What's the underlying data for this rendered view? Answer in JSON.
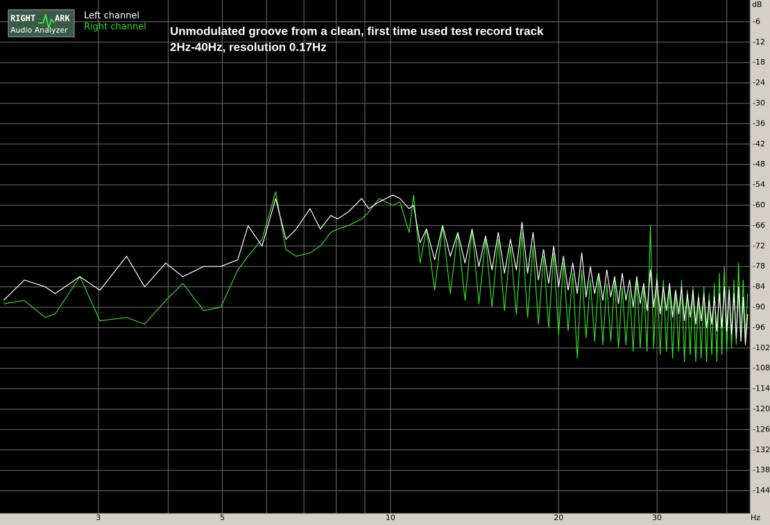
{
  "chart_data": {
    "type": "line",
    "logo": {
      "word1": "RIGHT",
      "word2": "ARK",
      "subtitle": "Audio Analyzer"
    },
    "title": "Unmodulated groove from a clean, first time used test record track",
    "subtitle": "2Hz-40Hz, resolution 0.17Hz",
    "y_label": "dB",
    "x_label": "Hz",
    "log_x": true,
    "grid": true,
    "background": "#000000",
    "grid_color": "#707070",
    "xlim": [
      2,
      44
    ],
    "xticks": [
      3,
      5,
      10,
      20,
      30
    ],
    "xminor": [
      4,
      6,
      7,
      8,
      9,
      40
    ],
    "ylim": [
      -150,
      0
    ],
    "yticks": [
      -6,
      -12,
      -18,
      -24,
      -30,
      -36,
      -42,
      -48,
      -54,
      -60,
      -66,
      -72,
      -78,
      -84,
      -90,
      -96,
      -102,
      -108,
      -114,
      -120,
      -126,
      -132,
      -138,
      -144
    ],
    "x": [
      2.03,
      2.21,
      2.41,
      2.51,
      2.78,
      3.02,
      3.37,
      3.63,
      3.96,
      4.25,
      4.63,
      4.97,
      5.33,
      5.56,
      5.89,
      6.23,
      6.5,
      6.78,
      7.18,
      7.49,
      7.82,
      8.04,
      8.4,
      8.88,
      9.14,
      9.54,
      10.1,
      10.4,
      10.8,
      11.0,
      11.3,
      11.6,
      12.0,
      12.4,
      12.8,
      13.2,
      13.6,
      14.0,
      14.4,
      14.8,
      15.2,
      15.6,
      16.0,
      16.4,
      16.8,
      17.2,
      17.6,
      18.0,
      18.4,
      18.8,
      19.2,
      19.6,
      20.0,
      20.4,
      20.8,
      21.2,
      21.6,
      22.0,
      22.4,
      22.8,
      23.2,
      23.6,
      24.0,
      24.4,
      24.8,
      25.2,
      25.6,
      26.0,
      26.4,
      26.8,
      27.2,
      27.6,
      28.0,
      28.4,
      28.8,
      29.2,
      29.6,
      30.0,
      30.4,
      30.8,
      31.2,
      31.6,
      32.0,
      32.4,
      32.8,
      33.2,
      33.6,
      34.0,
      34.4,
      34.8,
      35.2,
      35.6,
      36.0,
      36.4,
      36.8,
      37.2,
      37.6,
      38.0,
      38.4,
      38.8,
      39.2,
      39.6,
      40.0,
      40.4,
      40.8,
      41.2,
      41.6,
      42.0,
      42.4,
      42.8,
      43.2,
      43.6
    ],
    "series": [
      {
        "name": "Left channel",
        "color": "#ffffff",
        "values": [
          -88,
          -82,
          -84,
          -86,
          -81,
          -85,
          -75,
          -84,
          -77,
          -81,
          -78,
          -78,
          -76,
          -66,
          -72,
          -58,
          -70,
          -67,
          -61,
          -67,
          -63,
          -64,
          -62,
          -58,
          -61,
          -59,
          -57,
          -58,
          -61,
          -60,
          -71,
          -67,
          -76,
          -66,
          -75,
          -68,
          -77,
          -67,
          -78,
          -69,
          -79,
          -68,
          -80,
          -70,
          -79,
          -65,
          -80,
          -68,
          -82,
          -73,
          -83,
          -72,
          -84,
          -75,
          -85,
          -77,
          -86,
          -74,
          -87,
          -78,
          -86,
          -80,
          -88,
          -79,
          -87,
          -81,
          -89,
          -80,
          -88,
          -82,
          -90,
          -81,
          -89,
          -83,
          -91,
          -79,
          -90,
          -82,
          -92,
          -84,
          -91,
          -83,
          -93,
          -85,
          -92,
          -84,
          -94,
          -86,
          -93,
          -85,
          -95,
          -87,
          -94,
          -86,
          -96,
          -88,
          -95,
          -87,
          -97,
          -86,
          -96,
          -84,
          -97,
          -85,
          -98,
          -86,
          -99,
          -84,
          -100,
          -87,
          -101,
          -92
        ]
      },
      {
        "name": "Right channel",
        "color": "#33dd22",
        "values": [
          -89,
          -88,
          -93,
          -92,
          -81,
          -94,
          -93,
          -95,
          -88,
          -83,
          -91,
          -90,
          -79,
          -75,
          -70,
          -56,
          -73,
          -75,
          -74,
          -72,
          -68,
          -67,
          -66,
          -64,
          -62,
          -58,
          -60,
          -59,
          -68,
          -57,
          -77,
          -67,
          -85,
          -66,
          -86,
          -68,
          -88,
          -67,
          -89,
          -70,
          -90,
          -70,
          -91,
          -72,
          -92,
          -68,
          -93,
          -72,
          -95,
          -75,
          -96,
          -74,
          -98,
          -77,
          -97,
          -80,
          -105,
          -79,
          -99,
          -82,
          -100,
          -81,
          -101,
          -83,
          -100,
          -82,
          -102,
          -84,
          -101,
          -85,
          -103,
          -81,
          -102,
          -84,
          -103,
          -66,
          -102,
          -80,
          -104,
          -82,
          -103,
          -83,
          -105,
          -85,
          -103,
          -82,
          -106,
          -85,
          -104,
          -84,
          -106,
          -86,
          -105,
          -84,
          -106,
          -86,
          -104,
          -83,
          -106,
          -80,
          -104,
          -78,
          -103,
          -84,
          -102,
          -82,
          -101,
          -77,
          -100,
          -82,
          -99,
          -86
        ]
      }
    ]
  }
}
